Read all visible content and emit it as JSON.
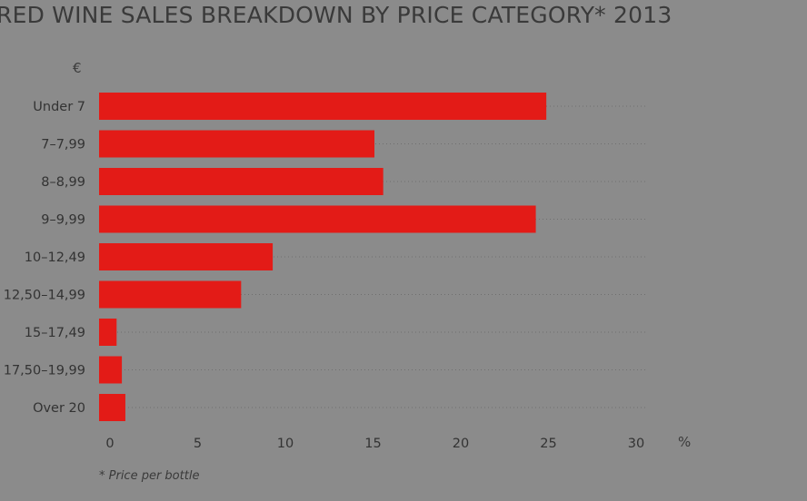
{
  "title": "RED WINE SALES BREAKDOWN BY PRICE CATEGORY* 2013",
  "currency_label": "€",
  "percent_label": "%",
  "footnote": "* Price per bottle",
  "colors": {
    "background": "#8b8b8b",
    "bar": "#e31b17",
    "text": "#3a3a3a",
    "gridline": "#6f6f6f"
  },
  "chart_data": {
    "type": "bar",
    "orientation": "horizontal",
    "title": "RED WINE SALES BREAKDOWN BY PRICE CATEGORY* 2013",
    "categories": [
      "Under 7",
      "7–7,99",
      "8–8,99",
      "9–9,99",
      "10–12,49",
      "12,50–14,99",
      "15–17,49",
      "17,50–19,99",
      "Over 20"
    ],
    "values": [
      25.5,
      15.7,
      16.2,
      24.9,
      9.9,
      8.1,
      1.0,
      1.3,
      1.5
    ],
    "xlabel": "%",
    "ylabel": "€",
    "xlim": [
      0,
      30
    ],
    "xticks": [
      "0",
      "5",
      "10",
      "15",
      "20",
      "25",
      "30"
    ],
    "grid": "dotted horizontal guide per category",
    "legend": "none"
  }
}
